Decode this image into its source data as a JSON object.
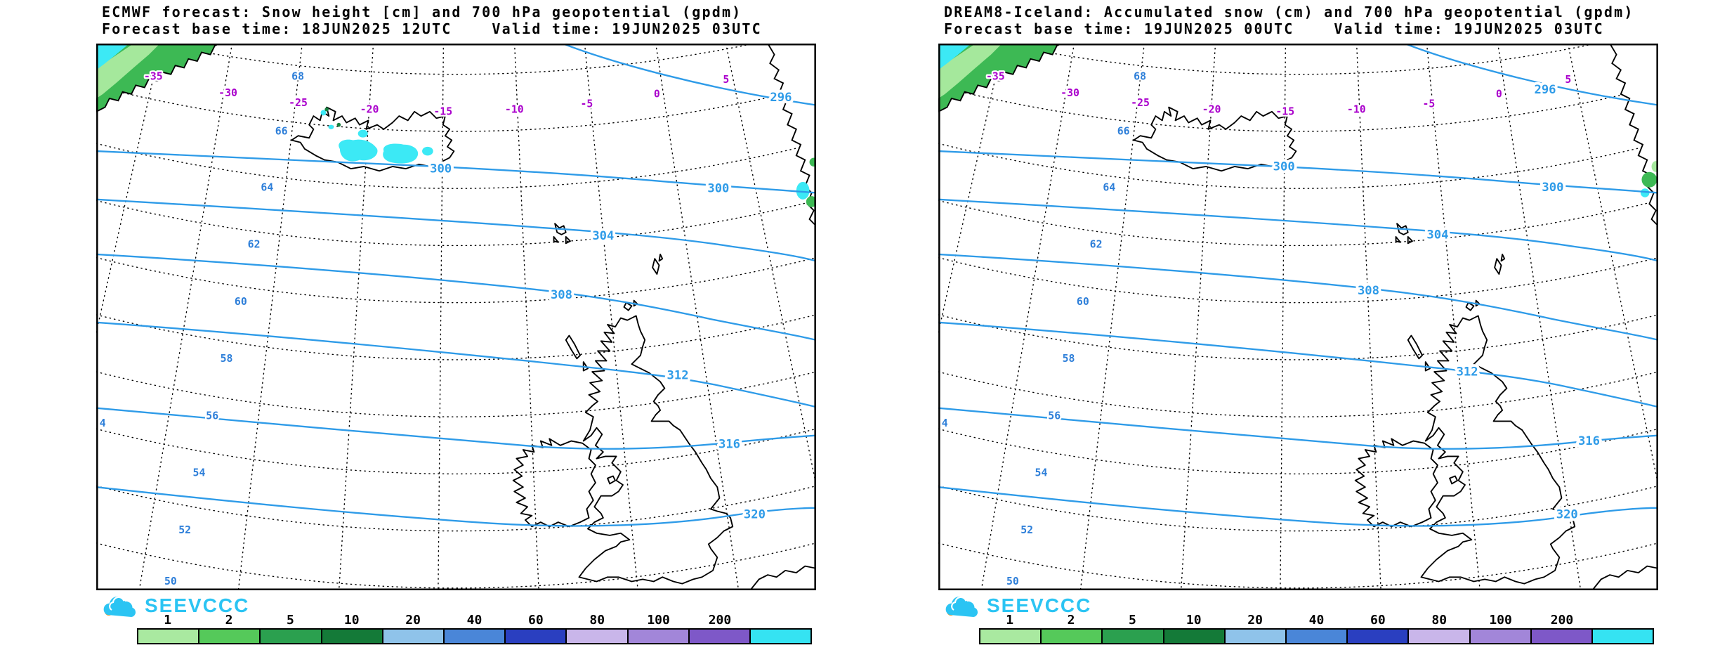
{
  "panels": [
    {
      "id": "ecmwf",
      "title_line1": "ECMWF forecast: Snow height [cm] and 700 hPa geopotential (gpdm)",
      "title_line2": "Forecast base time: 18JUN2025 12UTC    Valid time: 19JUN2025 03UTC",
      "logo_text": "SEEVCCC"
    },
    {
      "id": "dream8",
      "title_line1": "DREAM8-Iceland: Accumulated snow (cm) and 700 hPa geopotential (gpdm)",
      "title_line2": "Forecast base time: 19JUN2025 00UTC    Valid time: 19JUN2025 03UTC",
      "logo_text": "SEEVCCC"
    }
  ],
  "map": {
    "lat_labels": [
      "68",
      "66",
      "64",
      "62",
      "60",
      "58",
      "56",
      "54",
      "52",
      "50"
    ],
    "lon_labels": [
      "-35",
      "-30",
      "-25",
      "-20",
      "-15",
      "-10",
      "-5",
      "0",
      "5"
    ],
    "contour_labels": [
      "296",
      "300",
      "300",
      "304",
      "308",
      "312",
      "316",
      "320"
    ],
    "edge_label": "4",
    "colors": {
      "contour": "#2e9be8",
      "lat": "#2e7fd9",
      "lon": "#aa00cc",
      "coast": "#000000",
      "graticule": "#000000",
      "snow_cyan": "#3ce9f5",
      "snow_green": "#3db954",
      "snow_dark_green": "#157f3d",
      "snow_pale_green": "#a5e89c"
    }
  },
  "colorbar": {
    "labels": [
      "1",
      "2",
      "5",
      "10",
      "20",
      "40",
      "60",
      "80",
      "100",
      "200"
    ],
    "colors": [
      "#a9e9a0",
      "#55c95a",
      "#2ba04f",
      "#147a38",
      "#8fc3ea",
      "#4a86d8",
      "#2a3fc0",
      "#c9b6ea",
      "#a286d9",
      "#7e58c8",
      "#35e3f2"
    ]
  },
  "logo": {
    "color": "#2bc4f3",
    "accent": "#f7941d"
  }
}
